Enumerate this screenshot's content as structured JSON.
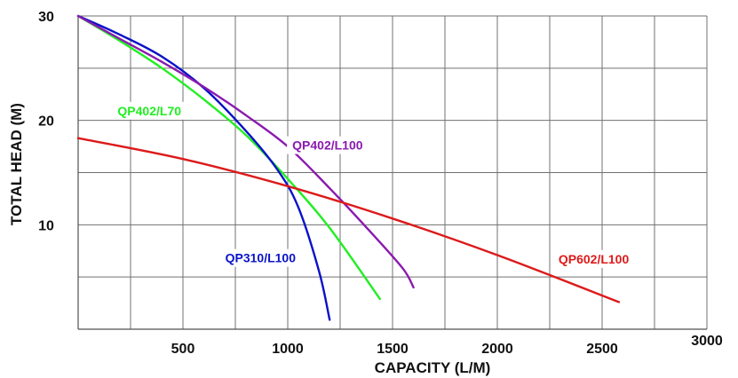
{
  "chart_data": {
    "type": "line",
    "xlabel": "CAPACITY (L/M)",
    "ylabel": "TOTAL HEAD (M)",
    "xlim": [
      0,
      3000
    ],
    "ylim": [
      0,
      30
    ],
    "x_grid_step": 250,
    "y_grid_step": 5,
    "x_tick_labels": [
      "500",
      "1000",
      "1500",
      "2000",
      "2500",
      "3000"
    ],
    "x_tick_values": [
      500,
      1000,
      1500,
      2000,
      2500,
      3000
    ],
    "y_tick_labels": [
      "10",
      "20",
      "30"
    ],
    "y_tick_values": [
      10,
      20,
      30
    ],
    "grid": true,
    "legend": "none",
    "series": [
      {
        "name": "QP402/L70",
        "color": "#22ee22",
        "x": [
          0,
          200,
          400,
          600,
          800,
          1000,
          1200,
          1440
        ],
        "y": [
          30,
          27.6,
          25.0,
          22.0,
          18.6,
          14.4,
          9.7,
          2.9
        ]
      },
      {
        "name": "QP310/L100",
        "color": "#0a12c8",
        "x": [
          0,
          200,
          400,
          600,
          800,
          950,
          1050,
          1150,
          1200
        ],
        "y": [
          30,
          28.2,
          26.1,
          23.1,
          19.0,
          15.3,
          11.7,
          5.5,
          0.9
        ]
      },
      {
        "name": "QP402/L100",
        "color": "#8a1ab0",
        "x": [
          0,
          200,
          400,
          600,
          800,
          1000,
          1200,
          1400,
          1550,
          1600
        ],
        "y": [
          30,
          27.8,
          25.6,
          23.2,
          20.5,
          17.5,
          13.5,
          9.2,
          5.8,
          4.0
        ]
      },
      {
        "name": "QP602/L100",
        "color": "#dd1a1a",
        "x": [
          0,
          500,
          1000,
          1500,
          2000,
          2580
        ],
        "y": [
          18.3,
          16.3,
          13.7,
          10.6,
          7.1,
          2.6
        ]
      }
    ],
    "annotations": [
      {
        "text": "QP402/L70",
        "color": "#22ee22",
        "x": 340,
        "y": 20.5
      },
      {
        "text": "QP310/L100",
        "color": "#0a12c8",
        "x": 870,
        "y": 6.4
      },
      {
        "text": "QP402/L100",
        "color": "#8a1ab0",
        "x": 1190,
        "y": 17.2
      },
      {
        "text": "QP602/L100",
        "color": "#dd1a1a",
        "x": 2460,
        "y": 6.3
      }
    ]
  }
}
